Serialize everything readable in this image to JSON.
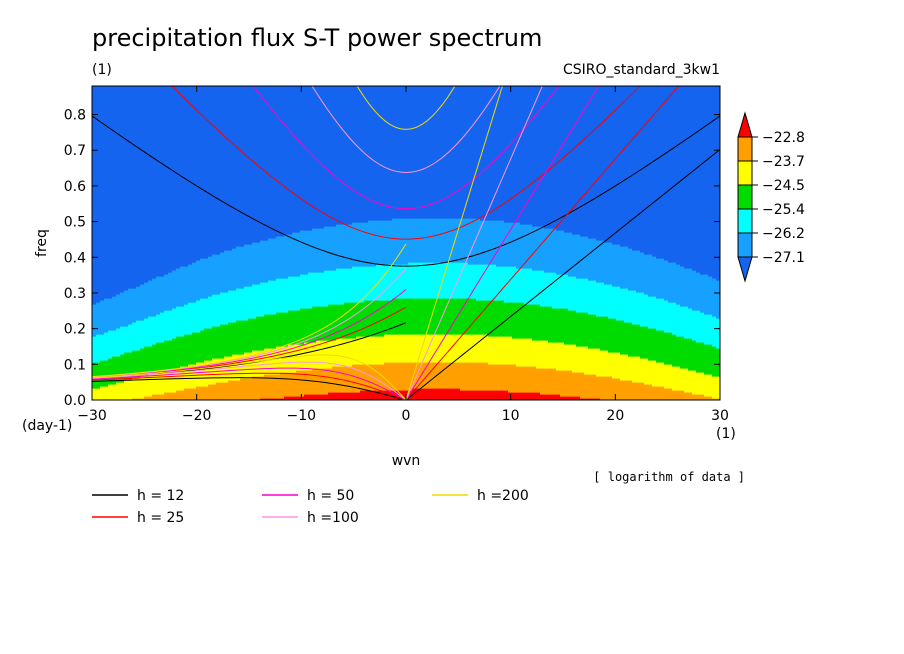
{
  "chart_data": {
    "type": "heatmap",
    "title": "precipitation flux S-T power spectrum",
    "subtitle_left": "(1)",
    "subtitle_right": "CSIRO_standard_3kw1",
    "xlabel": "wvn",
    "ylabel": "freq",
    "x_unit": "(1)",
    "y_unit": "(day-1)",
    "note": "[ logarithm of data ]",
    "xlim": [
      -30,
      30
    ],
    "ylim": [
      0,
      0.88
    ],
    "x_ticks": [
      -30,
      -20,
      -10,
      0,
      10,
      20,
      30
    ],
    "y_ticks": [
      0.0,
      0.1,
      0.2,
      0.3,
      0.4,
      0.5,
      0.6,
      0.7,
      0.8
    ],
    "y_tick_labels": [
      "0.0",
      "0.1",
      "0.2",
      "0.3",
      "0.4",
      "0.5",
      "0.6",
      "0.7",
      "0.8"
    ],
    "colorbar": {
      "levels": [
        -27.1,
        -26.2,
        -25.4,
        -24.5,
        -23.7,
        -22.8
      ],
      "labels": [
        "-27.1",
        "-26.2",
        "-25.4",
        "-24.5",
        "-23.7",
        "-22.8"
      ],
      "colors": [
        "#1464f0",
        "#16a0ff",
        "#00ffff",
        "#00dc00",
        "#ffff00",
        "#ffa000",
        "#ff0000"
      ]
    },
    "field": {
      "peak_wvn": 3,
      "peak_freq": 0.0,
      "peak_value": -22.3,
      "description_levels_ordered_low_to_high": [
        "-27.1",
        "-26.2",
        "-25.4",
        "-24.5",
        "-23.7",
        "-22.8"
      ]
    },
    "dispersion_curves": [
      {
        "label": "h = 12",
        "h": 12,
        "color": "#000000"
      },
      {
        "label": "h = 25",
        "h": 25,
        "color": "#ff0000"
      },
      {
        "label": "h = 50",
        "h": 50,
        "color": "#ff00c8"
      },
      {
        "label": "h =100",
        "h": 100,
        "color": "#ff96e6"
      },
      {
        "label": "h =200",
        "h": 200,
        "color": "#f0dc00"
      }
    ]
  }
}
